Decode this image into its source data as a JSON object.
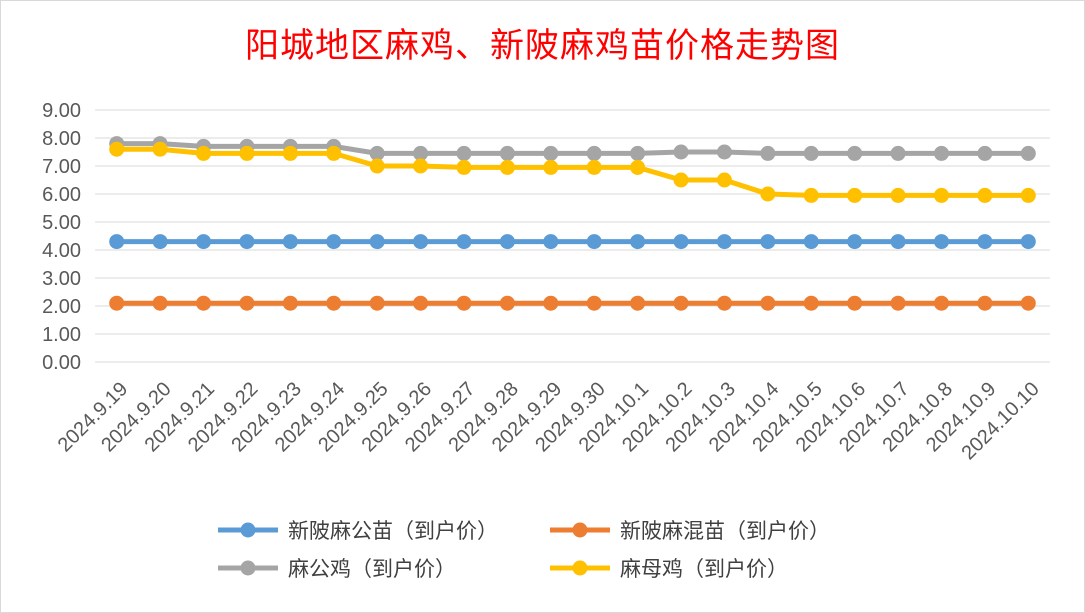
{
  "chart_data": {
    "type": "line",
    "title": "阳城地区麻鸡、新陂麻鸡苗价格走势图",
    "xlabel": "",
    "ylabel": "",
    "ylim": [
      0,
      9
    ],
    "yticks": [
      "0.00",
      "1.00",
      "2.00",
      "3.00",
      "4.00",
      "5.00",
      "6.00",
      "7.00",
      "8.00",
      "9.00"
    ],
    "grid": true,
    "legend_position": "bottom",
    "categories": [
      "2024.9.19",
      "2024.9.20",
      "2024.9.21",
      "2024.9.22",
      "2024.9.23",
      "2024.9.24",
      "2024.9.25",
      "2024.9.26",
      "2024.9.27",
      "2024.9.28",
      "2024.9.29",
      "2024.9.30",
      "2024.10.1",
      "2024.10.2",
      "2024.10.3",
      "2024.10.4",
      "2024.10.5",
      "2024.10.6",
      "2024.10.7",
      "2024.10.8",
      "2024.10.9",
      "2024.10.10"
    ],
    "series": [
      {
        "name": "新陂麻公苗（到户价）",
        "color": "#5b9bd5",
        "values": [
          4.3,
          4.3,
          4.3,
          4.3,
          4.3,
          4.3,
          4.3,
          4.3,
          4.3,
          4.3,
          4.3,
          4.3,
          4.3,
          4.3,
          4.3,
          4.3,
          4.3,
          4.3,
          4.3,
          4.3,
          4.3,
          4.3
        ]
      },
      {
        "name": "新陂麻混苗（到户价）",
        "color": "#ed7d31",
        "values": [
          2.1,
          2.1,
          2.1,
          2.1,
          2.1,
          2.1,
          2.1,
          2.1,
          2.1,
          2.1,
          2.1,
          2.1,
          2.1,
          2.1,
          2.1,
          2.1,
          2.1,
          2.1,
          2.1,
          2.1,
          2.1,
          2.1
        ]
      },
      {
        "name": "麻公鸡（到户价）",
        "color": "#a5a5a5",
        "values": [
          7.8,
          7.8,
          7.7,
          7.7,
          7.7,
          7.7,
          7.45,
          7.45,
          7.45,
          7.45,
          7.45,
          7.45,
          7.45,
          7.5,
          7.5,
          7.45,
          7.45,
          7.45,
          7.45,
          7.45,
          7.45,
          7.45
        ]
      },
      {
        "name": "麻母鸡（到户价）",
        "color": "#ffc000",
        "values": [
          7.6,
          7.6,
          7.45,
          7.45,
          7.45,
          7.45,
          7.0,
          7.0,
          6.95,
          6.95,
          6.95,
          6.95,
          6.95,
          6.5,
          6.5,
          6.0,
          5.95,
          5.95,
          5.95,
          5.95,
          5.95,
          5.95
        ]
      }
    ]
  }
}
